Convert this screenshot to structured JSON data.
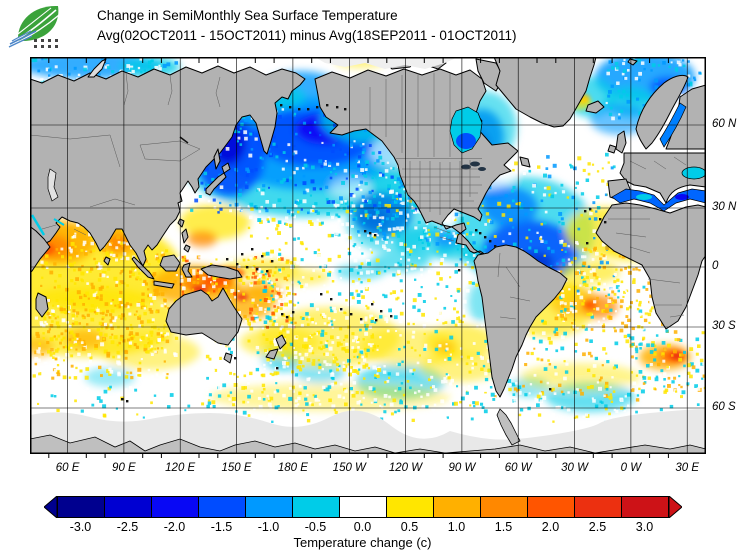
{
  "header": {
    "title_line1": "Change in SemiMonthly Sea Surface Temperature",
    "title_line2": "Avg(02OCT2011 - 15OCT2011) minus Avg(18SEP2011 - 01OCT2011)"
  },
  "map": {
    "lat_labels": [
      "60 N",
      "30 N",
      "0",
      "30 S",
      "60 S"
    ],
    "lon_labels": [
      "60 E",
      "90 E",
      "120 E",
      "150 E",
      "180 E",
      "150 W",
      "120 W",
      "90 W",
      "60 W",
      "30 W",
      "0 W",
      "30 E"
    ]
  },
  "colorbar": {
    "caption": "Temperature change  (c)",
    "ticks": [
      "-3.0",
      "-2.5",
      "-2.0",
      "-1.5",
      "-1.0",
      "-0.5",
      "0.0",
      "0.5",
      "1.0",
      "1.5",
      "2.0",
      "2.5",
      "3.0"
    ],
    "cell_colors": [
      "#00008F",
      "#0000D2",
      "#0808F5",
      "#004CFF",
      "#0099FF",
      "#00CCE8",
      "#FFFFFF",
      "#FFE600",
      "#FFB000",
      "#FF8800",
      "#FF5500",
      "#EC3010",
      "#CD1217"
    ],
    "arrow_left_color": "#00008F",
    "arrow_right_color": "#CD1217"
  },
  "map_colors": {
    "ocean": "#FFFFFF",
    "land": "#B2B2B2",
    "ice_shelf": "#E8E8E8",
    "antarctica": "#BFBFBF",
    "grid": "#000000"
  }
}
